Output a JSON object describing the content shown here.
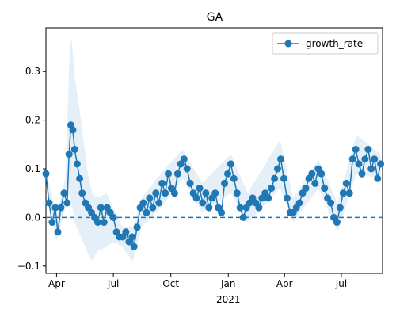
{
  "chart_data": {
    "type": "line",
    "title": "GA",
    "xlabel": "",
    "ylabel": "",
    "x_start": "2020-03-15",
    "x_end": "2021-09-05",
    "ylim": [
      -0.115,
      0.39
    ],
    "yticks": [
      -0.1,
      0.0,
      0.1,
      0.2,
      0.3
    ],
    "ytick_labels": [
      "−0.1",
      "0.0",
      "0.1",
      "0.2",
      "0.3"
    ],
    "xticks": [
      {
        "date": "2020-04-01",
        "label": "Apr",
        "sub": ""
      },
      {
        "date": "2020-07-01",
        "label": "Jul",
        "sub": ""
      },
      {
        "date": "2020-10-01",
        "label": "Oct",
        "sub": ""
      },
      {
        "date": "2021-01-01",
        "label": "Jan",
        "sub": "2021"
      },
      {
        "date": "2021-04-01",
        "label": "Apr",
        "sub": ""
      },
      {
        "date": "2021-07-01",
        "label": "Jul",
        "sub": ""
      }
    ],
    "reference_line": 0.0,
    "grid": false,
    "legend": {
      "position": "top-right",
      "entries": [
        "growth_rate"
      ]
    },
    "colors": {
      "series": "#1f77b4",
      "band": "#cfe1f2"
    },
    "series": [
      {
        "name": "growth_rate",
        "points": [
          [
            "2020-03-15",
            0.09
          ],
          [
            "2020-03-20",
            0.03
          ],
          [
            "2020-03-25",
            -0.01
          ],
          [
            "2020-03-30",
            0.02
          ],
          [
            "2020-04-03",
            -0.03
          ],
          [
            "2020-04-08",
            0.02
          ],
          [
            "2020-04-13",
            0.05
          ],
          [
            "2020-04-18",
            0.03
          ],
          [
            "2020-04-21",
            0.13
          ],
          [
            "2020-04-24",
            0.19
          ],
          [
            "2020-04-27",
            0.18
          ],
          [
            "2020-04-30",
            0.14
          ],
          [
            "2020-05-04",
            0.11
          ],
          [
            "2020-05-08",
            0.08
          ],
          [
            "2020-05-12",
            0.05
          ],
          [
            "2020-05-17",
            0.03
          ],
          [
            "2020-05-22",
            0.02
          ],
          [
            "2020-05-27",
            0.01
          ],
          [
            "2020-06-01",
            0.0
          ],
          [
            "2020-06-06",
            -0.01
          ],
          [
            "2020-06-11",
            0.02
          ],
          [
            "2020-06-16",
            -0.01
          ],
          [
            "2020-06-21",
            0.02
          ],
          [
            "2020-06-26",
            0.01
          ],
          [
            "2020-07-01",
            0.0
          ],
          [
            "2020-07-06",
            -0.03
          ],
          [
            "2020-07-11",
            -0.04
          ],
          [
            "2020-07-16",
            -0.04
          ],
          [
            "2020-07-21",
            -0.03
          ],
          [
            "2020-07-26",
            -0.05
          ],
          [
            "2020-07-31",
            -0.04
          ],
          [
            "2020-08-03",
            -0.06
          ],
          [
            "2020-08-08",
            -0.02
          ],
          [
            "2020-08-13",
            0.02
          ],
          [
            "2020-08-18",
            0.03
          ],
          [
            "2020-08-23",
            0.01
          ],
          [
            "2020-08-28",
            0.04
          ],
          [
            "2020-09-02",
            0.02
          ],
          [
            "2020-09-07",
            0.05
          ],
          [
            "2020-09-12",
            0.03
          ],
          [
            "2020-09-17",
            0.07
          ],
          [
            "2020-09-22",
            0.05
          ],
          [
            "2020-09-27",
            0.09
          ],
          [
            "2020-10-02",
            0.06
          ],
          [
            "2020-10-07",
            0.05
          ],
          [
            "2020-10-12",
            0.09
          ],
          [
            "2020-10-17",
            0.11
          ],
          [
            "2020-10-22",
            0.12
          ],
          [
            "2020-10-27",
            0.1
          ],
          [
            "2020-11-01",
            0.07
          ],
          [
            "2020-11-06",
            0.05
          ],
          [
            "2020-11-11",
            0.04
          ],
          [
            "2020-11-16",
            0.06
          ],
          [
            "2020-11-21",
            0.03
          ],
          [
            "2020-11-26",
            0.05
          ],
          [
            "2020-12-01",
            0.02
          ],
          [
            "2020-12-06",
            0.04
          ],
          [
            "2020-12-11",
            0.05
          ],
          [
            "2020-12-16",
            0.02
          ],
          [
            "2020-12-21",
            0.01
          ],
          [
            "2020-12-26",
            0.07
          ],
          [
            "2020-12-31",
            0.09
          ],
          [
            "2021-01-05",
            0.11
          ],
          [
            "2021-01-10",
            0.08
          ],
          [
            "2021-01-15",
            0.05
          ],
          [
            "2021-01-20",
            0.02
          ],
          [
            "2021-01-25",
            0.0
          ],
          [
            "2021-01-30",
            0.02
          ],
          [
            "2021-02-04",
            0.03
          ],
          [
            "2021-02-09",
            0.04
          ],
          [
            "2021-02-14",
            0.03
          ],
          [
            "2021-02-19",
            0.02
          ],
          [
            "2021-02-24",
            0.04
          ],
          [
            "2021-03-01",
            0.05
          ],
          [
            "2021-03-06",
            0.04
          ],
          [
            "2021-03-11",
            0.06
          ],
          [
            "2021-03-16",
            0.08
          ],
          [
            "2021-03-21",
            0.1
          ],
          [
            "2021-03-26",
            0.12
          ],
          [
            "2021-03-31",
            0.08
          ],
          [
            "2021-04-05",
            0.04
          ],
          [
            "2021-04-10",
            0.01
          ],
          [
            "2021-04-15",
            0.01
          ],
          [
            "2021-04-20",
            0.02
          ],
          [
            "2021-04-25",
            0.03
          ],
          [
            "2021-04-30",
            0.05
          ],
          [
            "2021-05-05",
            0.06
          ],
          [
            "2021-05-10",
            0.08
          ],
          [
            "2021-05-15",
            0.09
          ],
          [
            "2021-05-20",
            0.07
          ],
          [
            "2021-05-25",
            0.1
          ],
          [
            "2021-05-30",
            0.09
          ],
          [
            "2021-06-04",
            0.06
          ],
          [
            "2021-06-09",
            0.04
          ],
          [
            "2021-06-14",
            0.03
          ],
          [
            "2021-06-19",
            0.0
          ],
          [
            "2021-06-24",
            -0.01
          ],
          [
            "2021-06-29",
            0.02
          ],
          [
            "2021-07-04",
            0.05
          ],
          [
            "2021-07-09",
            0.07
          ],
          [
            "2021-07-14",
            0.05
          ],
          [
            "2021-07-19",
            0.12
          ],
          [
            "2021-07-24",
            0.14
          ],
          [
            "2021-07-29",
            0.11
          ],
          [
            "2021-08-03",
            0.09
          ],
          [
            "2021-08-08",
            0.12
          ],
          [
            "2021-08-13",
            0.14
          ],
          [
            "2021-08-18",
            0.1
          ],
          [
            "2021-08-23",
            0.12
          ],
          [
            "2021-08-28",
            0.08
          ],
          [
            "2021-09-02",
            0.11
          ]
        ]
      }
    ],
    "band": {
      "points": [
        [
          "2020-03-15",
          0.1,
          0.08
        ],
        [
          "2020-04-01",
          0.0,
          -0.05
        ],
        [
          "2020-04-15",
          0.08,
          0.02
        ],
        [
          "2020-04-22",
          0.34,
          0.05
        ],
        [
          "2020-04-25",
          0.37,
          0.03
        ],
        [
          "2020-04-30",
          0.29,
          -0.01
        ],
        [
          "2020-05-10",
          0.2,
          -0.04
        ],
        [
          "2020-05-20",
          0.1,
          -0.07
        ],
        [
          "2020-05-28",
          0.05,
          -0.09
        ],
        [
          "2020-06-05",
          0.04,
          -0.07
        ],
        [
          "2020-06-20",
          0.05,
          -0.06
        ],
        [
          "2020-07-01",
          0.02,
          -0.05
        ],
        [
          "2020-07-15",
          -0.02,
          -0.06
        ],
        [
          "2020-08-01",
          -0.02,
          -0.09
        ],
        [
          "2020-08-15",
          0.04,
          -0.02
        ],
        [
          "2020-09-15",
          0.09,
          0.02
        ],
        [
          "2020-10-20",
          0.14,
          0.08
        ],
        [
          "2020-11-20",
          0.07,
          0.01
        ],
        [
          "2021-01-05",
          0.13,
          0.05
        ],
        [
          "2021-02-01",
          0.05,
          -0.01
        ],
        [
          "2021-03-25",
          0.16,
          0.06
        ],
        [
          "2021-04-15",
          0.04,
          -0.01
        ],
        [
          "2021-05-25",
          0.12,
          0.06
        ],
        [
          "2021-06-25",
          0.03,
          -0.03
        ],
        [
          "2021-07-25",
          0.17,
          0.09
        ],
        [
          "2021-09-02",
          0.13,
          0.08
        ]
      ]
    }
  }
}
